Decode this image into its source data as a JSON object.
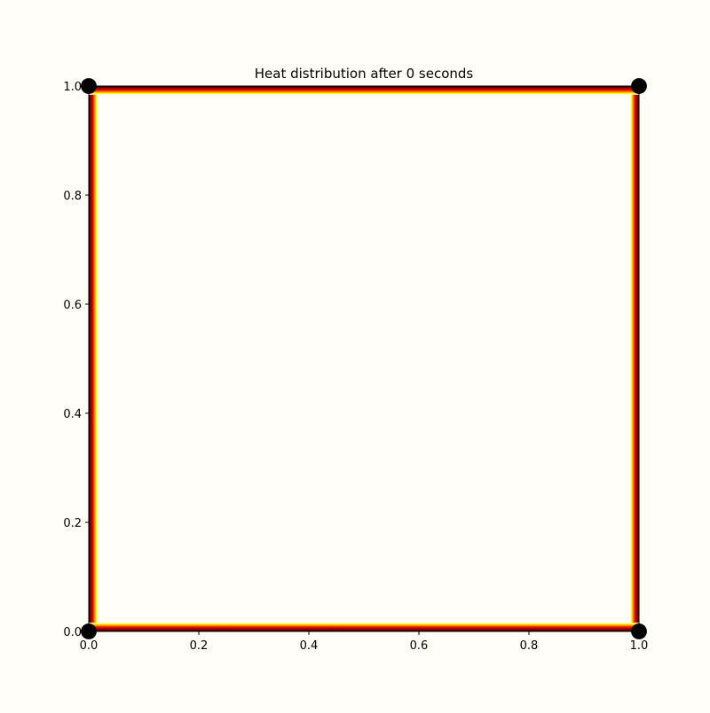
{
  "chart_data": {
    "type": "heatmap",
    "title": "Heat distribution after 0 seconds",
    "xlabel": "",
    "ylabel": "",
    "xlim": [
      0.0,
      1.0
    ],
    "ylim": [
      0.0,
      1.0
    ],
    "x_ticks": [
      0.0,
      0.2,
      0.4,
      0.6,
      0.8,
      1.0
    ],
    "y_ticks": [
      0.0,
      0.2,
      0.4,
      0.6,
      0.8,
      1.0
    ],
    "x_tick_labels": [
      "0.0",
      "0.2",
      "0.4",
      "0.6",
      "0.8",
      "1.0"
    ],
    "y_tick_labels": [
      "0.0",
      "0.2",
      "0.4",
      "0.6",
      "0.8",
      "1.0"
    ],
    "colormap": "hot",
    "interior_value": "max",
    "boundary_value": "min",
    "boundary_width_fraction": 0.016,
    "grid": false,
    "legend": "none",
    "colors": {
      "background": "#fffef9",
      "boundary_cold": "#000000",
      "dark_red": "#8b0000",
      "red": "#e60000",
      "orange": "#ff8c00",
      "yellow": "#ffff00",
      "interior_hot": "#fffef9"
    }
  }
}
